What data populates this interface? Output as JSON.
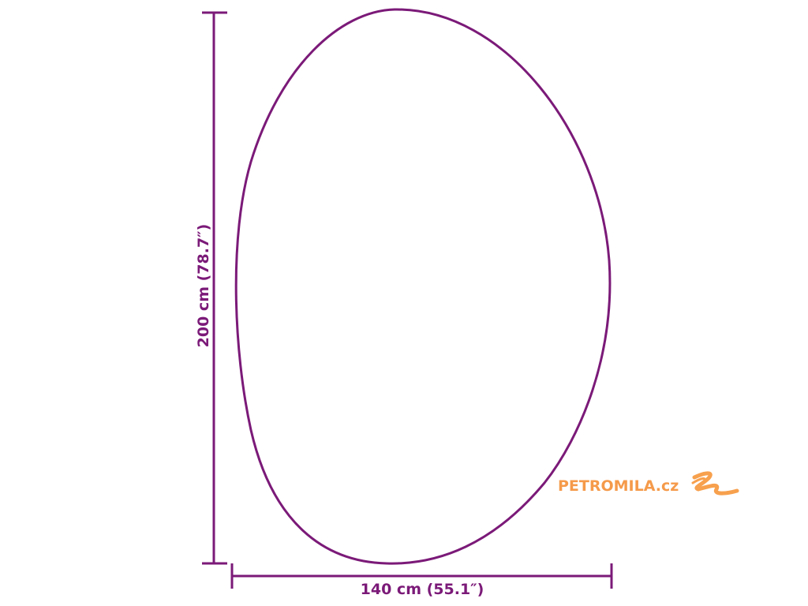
{
  "diagram": {
    "height_label": "200 cm (78.7″)",
    "width_label": "140 cm (55.1″)",
    "line_color": "#7b1a78"
  },
  "watermark": {
    "text": "PETROMILA.cz",
    "color": "#f59a4a",
    "icon": "brush-stroke-icon"
  }
}
